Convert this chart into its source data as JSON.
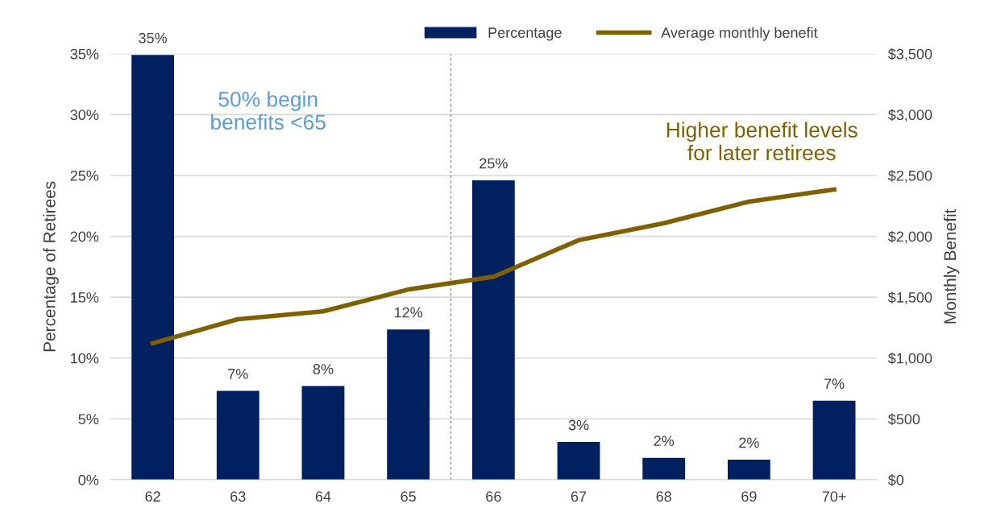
{
  "chart_data": {
    "type": "bar",
    "categories": [
      "62",
      "63",
      "64",
      "65",
      "66",
      "67",
      "68",
      "69",
      "70+"
    ],
    "ylabel": "Percentage of Retirees",
    "y2label": "Monthly Benefit",
    "series": [
      {
        "name": "Percentage",
        "color": "#002060",
        "values": [
          34.9,
          7.3,
          7.7,
          12.35,
          24.6,
          3.1,
          1.8,
          1.65,
          6.5
        ],
        "value_labels": [
          "35%",
          "7%",
          "8%",
          "12%",
          "25%",
          "3%",
          "2%",
          "2%",
          "7%"
        ]
      },
      {
        "name": "Average monthly benefit",
        "type": "line",
        "axis": "y2",
        "color": "#7f6000",
        "values": [
          1122,
          1319,
          1384,
          1563,
          1668,
          1968,
          2108,
          2285,
          2385
        ]
      }
    ],
    "ylim": [
      0,
      35
    ],
    "yticks": [
      {
        "value": 0,
        "label": "0%"
      },
      {
        "value": 5,
        "label": "5%"
      },
      {
        "value": 10,
        "label": "10%"
      },
      {
        "value": 15,
        "label": "15%"
      },
      {
        "value": 20,
        "label": "20%"
      },
      {
        "value": 25,
        "label": "25%"
      },
      {
        "value": 30,
        "label": "30%"
      },
      {
        "value": 35,
        "label": "35%"
      }
    ],
    "y2lim": [
      0,
      3500
    ],
    "y2ticks": [
      {
        "value": 0,
        "label": "$0"
      },
      {
        "value": 500,
        "label": "$500"
      },
      {
        "value": 1000,
        "label": "$1,000"
      },
      {
        "value": 1500,
        "label": "$1,500"
      },
      {
        "value": 2000,
        "label": "$2,000"
      },
      {
        "value": 2500,
        "label": "$2,500"
      },
      {
        "value": 3000,
        "label": "$3,000"
      },
      {
        "value": 3500,
        "label": "$3,500"
      }
    ],
    "annotations": [
      "50% begin\nbenefits <65",
      "Higher benefit levels\nfor later retirees"
    ],
    "grid": "y",
    "legend": "top right",
    "marker": "none",
    "line_style": "solid"
  }
}
